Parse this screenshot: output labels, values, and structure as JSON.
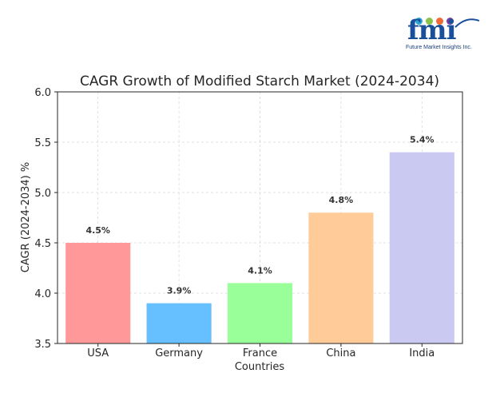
{
  "logo": {
    "letters": "fmi",
    "tagline": "Future Market Insights Inc.",
    "dot_colors": [
      "#2aa6d6",
      "#8bc34a",
      "#f06a35",
      "#7b3fa0"
    ]
  },
  "chart_data": {
    "type": "bar",
    "title": "CAGR Growth of Modified Starch Market (2024-2034)",
    "xlabel": "Countries",
    "ylabel": "CAGR (2024-2034) %",
    "categories": [
      "USA",
      "Germany",
      "France",
      "China",
      "India"
    ],
    "values": [
      4.5,
      3.9,
      4.1,
      4.8,
      5.4
    ],
    "data_labels": [
      "4.5%",
      "3.9%",
      "4.1%",
      "4.8%",
      "5.4%"
    ],
    "colors": [
      "#ff9999",
      "#66bfff",
      "#99ff99",
      "#ffcc99",
      "#c9c9f2"
    ],
    "ylim": [
      3.5,
      6.0
    ],
    "yticks": [
      3.5,
      4.0,
      4.5,
      5.0,
      5.5,
      6.0
    ],
    "ytick_labels": [
      "3.5",
      "4.0",
      "4.5",
      "5.0",
      "5.5",
      "6.0"
    ],
    "grid": true
  }
}
